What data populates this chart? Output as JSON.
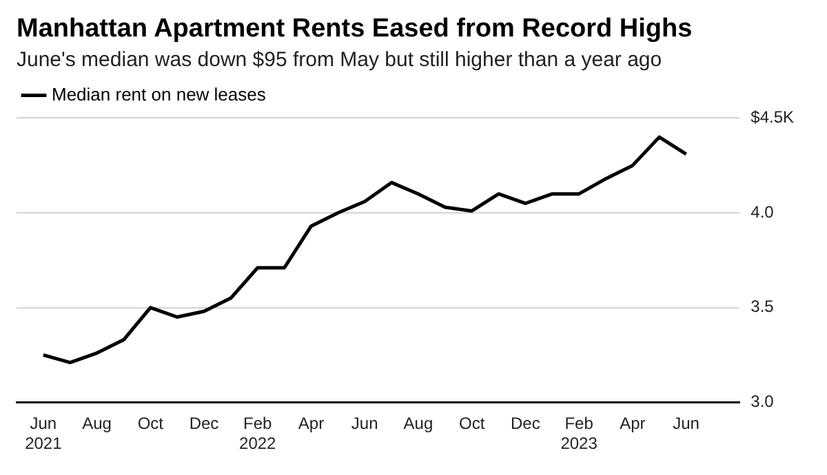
{
  "chart_data": {
    "type": "line",
    "title": "Manhattan Apartment Rents Eased from Record Highs",
    "subtitle": "June's median was down $95 from May but still higher than a year ago",
    "x": [
      "2021-06",
      "2021-07",
      "2021-08",
      "2021-09",
      "2021-10",
      "2021-11",
      "2021-12",
      "2022-01",
      "2022-02",
      "2022-03",
      "2022-04",
      "2022-05",
      "2022-06",
      "2022-07",
      "2022-08",
      "2022-09",
      "2022-10",
      "2022-11",
      "2022-12",
      "2023-01",
      "2023-02",
      "2023-03",
      "2023-04",
      "2023-05",
      "2023-06"
    ],
    "series": [
      {
        "name": "Median rent on new leases",
        "color": "#000000",
        "values": [
          3.25,
          3.21,
          3.26,
          3.33,
          3.5,
          3.45,
          3.48,
          3.55,
          3.71,
          3.71,
          3.93,
          4.0,
          4.06,
          4.16,
          4.1,
          4.03,
          4.01,
          4.1,
          4.05,
          4.1,
          4.1,
          4.18,
          4.25,
          4.4,
          4.31
        ]
      }
    ],
    "xlim": [
      "2021-05",
      "2023-08"
    ],
    "xticks": [
      {
        "value": "2021-06",
        "label": "Jun 2021"
      },
      {
        "value": "2021-08",
        "label": "Aug"
      },
      {
        "value": "2021-10",
        "label": "Oct"
      },
      {
        "value": "2021-12",
        "label": "Dec"
      },
      {
        "value": "2022-02",
        "label": "Feb 2022"
      },
      {
        "value": "2022-04",
        "label": "Apr"
      },
      {
        "value": "2022-06",
        "label": "Jun"
      },
      {
        "value": "2022-08",
        "label": "Aug"
      },
      {
        "value": "2022-10",
        "label": "Oct"
      },
      {
        "value": "2022-12",
        "label": "Dec"
      },
      {
        "value": "2023-02",
        "label": "Feb 2023"
      },
      {
        "value": "2023-04",
        "label": "Apr"
      },
      {
        "value": "2023-06",
        "label": "Jun"
      }
    ],
    "ylim": [
      3.0,
      4.5
    ],
    "yticks": [
      {
        "value": 3.0,
        "label": "3.0"
      },
      {
        "value": 3.5,
        "label": "3.5"
      },
      {
        "value": 4.0,
        "label": "4.0"
      },
      {
        "value": 4.5,
        "label": "$4.5K"
      }
    ],
    "grid": "y",
    "legend": "top left",
    "marker": "none",
    "line_style": "solid"
  }
}
